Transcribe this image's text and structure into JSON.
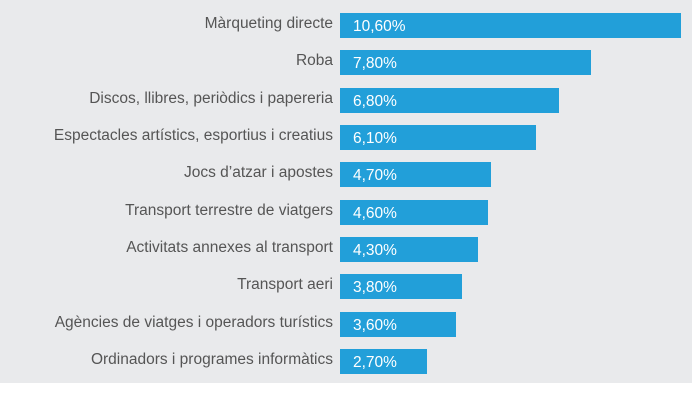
{
  "chart_data": {
    "type": "bar",
    "orientation": "horizontal",
    "title": "",
    "xlabel": "",
    "ylabel": "",
    "xlim": [
      0,
      10.6
    ],
    "grid": false,
    "bar_color": "#229fd9",
    "categories": [
      "Màrqueting directe",
      "Roba",
      "Discos, llibres, periòdics i papereria",
      "Espectacles artístics, esportius i creatius",
      "Jocs d’atzar i apostes",
      "Transport terrestre de viatgers",
      "Activitats annexes al transport",
      "Transport aeri",
      "Agències de viatges i operadors turístics",
      "Ordinadors i programes informàtics"
    ],
    "values": [
      10.6,
      7.8,
      6.8,
      6.1,
      4.7,
      4.6,
      4.3,
      3.8,
      3.6,
      2.7
    ],
    "value_labels": [
      "10,60%",
      "7,80%",
      "6,80%",
      "6,10%",
      "4,70%",
      "4,60%",
      "4,30%",
      "3,80%",
      "3,60%",
      "2,70%"
    ]
  }
}
